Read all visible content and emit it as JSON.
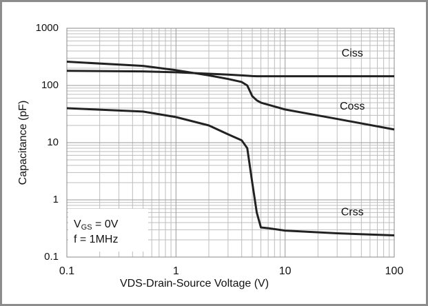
{
  "chart_data": {
    "type": "line",
    "x_label": "VDS-Drain-Source Voltage (V)",
    "y_label": "Capacitance (pF)",
    "xlog": true,
    "ylog": true,
    "grid": true,
    "xlim": [
      0.1,
      100
    ],
    "ylim": [
      0.1,
      1000
    ],
    "xticks": [
      0.1,
      1,
      10,
      100
    ],
    "yticks": [
      0.1,
      1,
      10,
      100,
      1000
    ],
    "x": [
      0.1,
      0.5,
      1,
      2,
      3,
      4,
      4.5,
      5,
      5.5,
      6,
      7,
      10,
      30,
      100
    ],
    "series": [
      {
        "name": "Ciss",
        "color": "#222222",
        "values": [
          180,
          176,
          170,
          160,
          155,
          150,
          148,
          146,
          145,
          145,
          145,
          145,
          145,
          145
        ]
      },
      {
        "name": "Coss",
        "color": "#222222",
        "values": [
          260,
          220,
          185,
          150,
          130,
          115,
          100,
          65,
          55,
          50,
          46,
          38,
          26,
          17
        ]
      },
      {
        "name": "Crss",
        "color": "#222222",
        "values": [
          40,
          35,
          28,
          20,
          14,
          11,
          8,
          2,
          0.6,
          0.33,
          0.32,
          0.29,
          0.26,
          0.24
        ]
      }
    ],
    "conditions": [
      [
        "V",
        "GS",
        " = 0V"
      ],
      [
        "f = 1MHz"
      ]
    ]
  }
}
